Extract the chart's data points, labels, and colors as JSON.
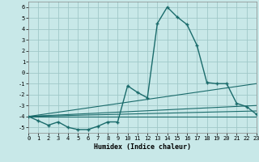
{
  "xlabel": "Humidex (Indice chaleur)",
  "bg_color": "#c8e8e8",
  "grid_color": "#a0c8c8",
  "line_color": "#1a6b6b",
  "xlim": [
    0,
    23
  ],
  "ylim": [
    -5.5,
    6.5
  ],
  "xticks": [
    0,
    1,
    2,
    3,
    4,
    5,
    6,
    7,
    8,
    9,
    10,
    11,
    12,
    13,
    14,
    15,
    16,
    17,
    18,
    19,
    20,
    21,
    22,
    23
  ],
  "yticks": [
    -5,
    -4,
    -3,
    -2,
    -1,
    0,
    1,
    2,
    3,
    4,
    5,
    6
  ],
  "main_x": [
    0,
    1,
    2,
    3,
    4,
    5,
    6,
    7,
    8,
    9,
    10,
    11,
    12,
    13,
    14,
    15,
    16,
    17,
    18,
    19,
    20,
    21,
    22,
    23
  ],
  "main_y": [
    -4.0,
    -4.4,
    -4.8,
    -4.5,
    -5.0,
    -5.2,
    -5.2,
    -4.9,
    -4.5,
    -4.5,
    -1.2,
    -1.8,
    -2.3,
    4.5,
    6.0,
    5.1,
    4.4,
    2.5,
    -0.9,
    -1.0,
    -1.0,
    -2.8,
    -3.1,
    -3.8
  ],
  "ref_lines": [
    {
      "x0": 0,
      "y0": -4.0,
      "x1": 23,
      "y1": -4.0
    },
    {
      "x0": 0,
      "y0": -4.0,
      "x1": 23,
      "y1": -3.5
    },
    {
      "x0": 0,
      "y0": -4.0,
      "x1": 23,
      "y1": -3.0
    },
    {
      "x0": 0,
      "y0": -4.0,
      "x1": 23,
      "y1": -1.0
    }
  ]
}
